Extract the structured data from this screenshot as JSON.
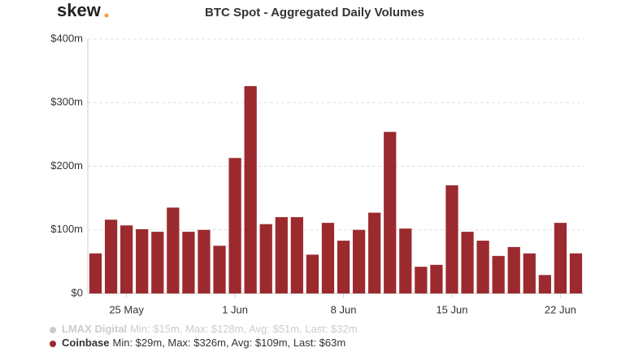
{
  "logo": "skew",
  "chart_data": {
    "type": "bar",
    "title": "BTC Spot - Aggregated Daily Volumes",
    "categories": [
      null,
      null,
      "25 May",
      null,
      null,
      null,
      null,
      null,
      null,
      "1 Jun",
      null,
      null,
      null,
      null,
      null,
      null,
      "8 Jun",
      null,
      null,
      null,
      null,
      null,
      null,
      "15 Jun",
      null,
      null,
      null,
      null,
      null,
      null,
      "22 Jun",
      null
    ],
    "series": [
      {
        "name": "LMAX Digital",
        "color": "#cccccc",
        "visible": false,
        "stats": "Min: $15m, Max: $128m, Avg: $51m, Last: $32m"
      },
      {
        "name": "Coinbase",
        "color": "#9b2a2f",
        "visible": true,
        "stats": "Min: $29m, Max: $326m, Avg: $109m, Last: $63m",
        "values": [
          63,
          116,
          107,
          101,
          97,
          135,
          97,
          100,
          75,
          213,
          326,
          109,
          120,
          120,
          61,
          111,
          83,
          100,
          127,
          254,
          102,
          42,
          45,
          170,
          97,
          83,
          59,
          73,
          63,
          29,
          111,
          63
        ]
      }
    ],
    "ylim": [
      0,
      400
    ],
    "yticks": [
      {
        "value": 0,
        "label": "$0"
      },
      {
        "value": 100,
        "label": "$100m"
      },
      {
        "value": 200,
        "label": "$200m"
      },
      {
        "value": 300,
        "label": "$300m"
      },
      {
        "value": 400,
        "label": "$400m"
      }
    ],
    "grid": true
  }
}
